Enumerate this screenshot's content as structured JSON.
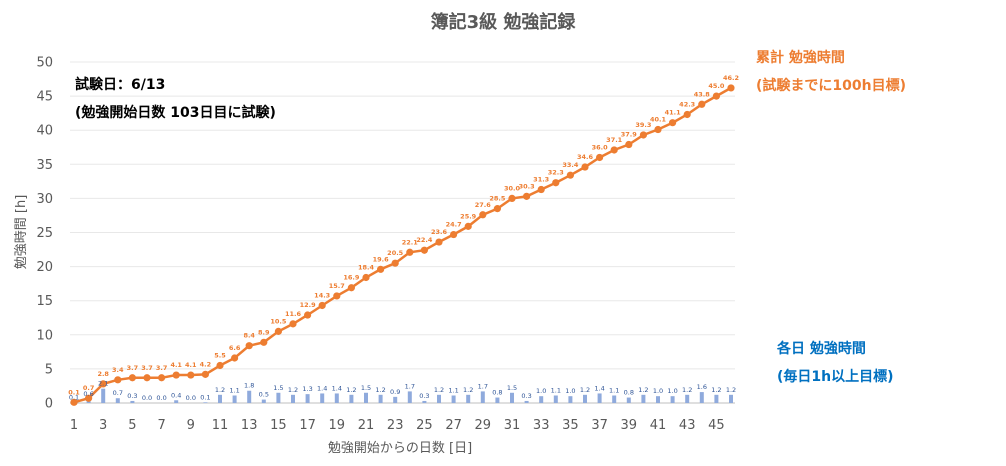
{
  "chart_data": {
    "type": "line",
    "title": "簿記3級 勉強記録",
    "xlabel": "勉強開始からの日数 [日]",
    "ylabel": "勉強時間 [h]",
    "ylim": [
      0,
      50
    ],
    "yticks": [
      "0",
      "5",
      "10",
      "15",
      "20",
      "25",
      "30",
      "35",
      "40",
      "45",
      "50"
    ],
    "xticks": [
      "1",
      "3",
      "5",
      "7",
      "9",
      "11",
      "13",
      "15",
      "17",
      "19",
      "21",
      "23",
      "25",
      "27",
      "29",
      "31",
      "33",
      "35",
      "37",
      "39",
      "41",
      "43",
      "45"
    ],
    "grid": true,
    "annotation_line1": "試験日：6/13",
    "annotation_line2": "(勉強開始日数 103日目に試験)",
    "x": [
      1,
      2,
      3,
      4,
      5,
      6,
      7,
      8,
      9,
      10,
      11,
      12,
      13,
      14,
      15,
      16,
      17,
      18,
      19,
      20,
      21,
      22,
      23,
      24,
      25,
      26,
      27,
      28,
      29,
      30,
      31,
      32,
      33,
      34,
      35,
      36,
      37,
      38,
      39,
      40,
      41,
      42,
      43,
      44,
      45,
      46
    ],
    "series": [
      {
        "name": "累計 勉強時間",
        "legend_line1": "累計 勉強時間",
        "legend_line2": "(試験までに100h目標)",
        "type": "line",
        "color": "#ED7D31",
        "values": [
          0.1,
          0.7,
          2.8,
          3.4,
          3.7,
          3.7,
          3.7,
          4.1,
          4.1,
          4.2,
          5.5,
          6.6,
          8.4,
          8.9,
          10.5,
          11.6,
          12.9,
          14.3,
          15.7,
          16.9,
          18.4,
          19.6,
          20.5,
          22.1,
          22.4,
          23.6,
          24.7,
          25.9,
          27.6,
          28.5,
          30.0,
          30.3,
          31.3,
          32.3,
          33.4,
          34.6,
          36.0,
          37.1,
          37.9,
          39.3,
          40.1,
          41.1,
          42.3,
          43.8,
          45.0,
          46.2
        ],
        "labels": [
          "0.1",
          "0.7",
          "2.8",
          "3.4",
          "3.7",
          "3.7",
          "3.7",
          "4.1",
          "4.1",
          "4.2",
          "5.5",
          "6.6",
          "8.4",
          "8.9",
          "10.5",
          "11.6",
          "12.9",
          "14.3",
          "15.7",
          "16.9",
          "18.4",
          "19.6",
          "20.5",
          "22.1",
          "22.4",
          "23.6",
          "24.7",
          "25.9",
          "27.6",
          "28.5",
          "30.0",
          "30.3",
          "31.3",
          "32.3",
          "33.4",
          "34.6",
          "36.0",
          "37.1",
          "37.9",
          "39.3",
          "40.1",
          "41.1",
          "42.3",
          "43.8",
          "45.0",
          "46.2"
        ]
      },
      {
        "name": "各日 勉強時間",
        "legend_line1": "各日 勉強時間",
        "legend_line2": "(毎日1h以上目標)",
        "type": "bar",
        "color": "#8FAADC",
        "values": [
          0.1,
          0.6,
          2.1,
          0.7,
          0.3,
          0.0,
          0.0,
          0.4,
          0.0,
          0.1,
          1.2,
          1.1,
          1.8,
          0.5,
          1.5,
          1.2,
          1.3,
          1.4,
          1.4,
          1.2,
          1.5,
          1.2,
          0.9,
          1.7,
          0.3,
          1.2,
          1.1,
          1.2,
          1.7,
          0.8,
          1.5,
          0.3,
          1.0,
          1.1,
          1.0,
          1.2,
          1.4,
          1.1,
          0.8,
          1.2,
          1.0,
          1.0,
          1.2,
          1.6,
          1.2,
          1.2
        ],
        "labels": [
          "0.1",
          "0.6",
          "2.1",
          "0.7",
          "0.3",
          "0.0",
          "0.0",
          "0.4",
          "0.0",
          "0.1",
          "1.2",
          "1.1",
          "1.8",
          "0.5",
          "1.5",
          "1.2",
          "1.3",
          "1.4",
          "1.4",
          "1.2",
          "1.5",
          "1.2",
          "0.9",
          "1.7",
          "0.3",
          "1.2",
          "1.1",
          "1.2",
          "1.7",
          "0.8",
          "1.5",
          "0.3",
          "1.0",
          "1.1",
          "1.0",
          "1.2",
          "1.4",
          "1.1",
          "0.8",
          "1.2",
          "1.0",
          "1.0",
          "1.2",
          "1.6",
          "1.2",
          "1.2"
        ]
      }
    ]
  }
}
